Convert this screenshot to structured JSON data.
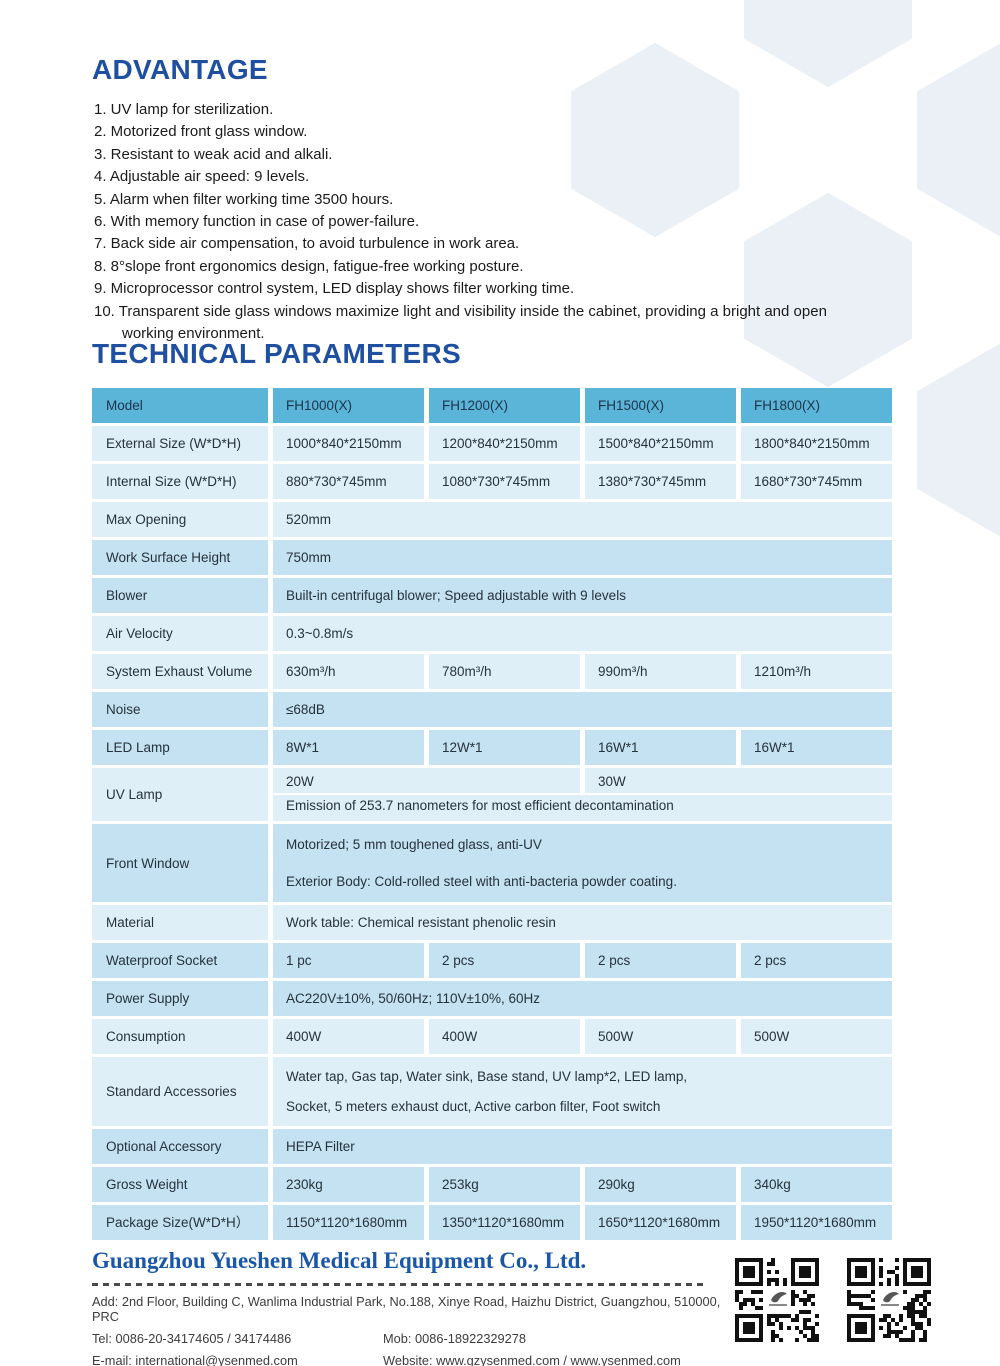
{
  "advantage": {
    "title": "ADVANTAGE",
    "items": [
      "1. UV lamp for sterilization.",
      "2. Motorized front glass window.",
      "3. Resistant to weak acid and alkali.",
      "4. Adjustable air speed: 9 levels.",
      "5. Alarm when filter working time 3500 hours.",
      "6. With memory function in case of power-failure.",
      "7. Back side air compensation, to avoid turbulence in work area.",
      "8. 8°slope front ergonomics design, fatigue-free working posture.",
      "9. Microprocessor control system, LED display shows filter working time.",
      "10. Transparent side glass windows maximize light and visibility inside the cabinet, providing a bright and open working environment."
    ]
  },
  "technical": {
    "title": "TECHNICAL PARAMETERS"
  },
  "table": {
    "rows": [
      {
        "label": "Model",
        "shade": "header",
        "cells": [
          {
            "text": "FH1000(X)"
          },
          {
            "text": "FH1200(X)"
          },
          {
            "text": "FH1500(X)"
          },
          {
            "text": "FH1800(X)"
          }
        ]
      },
      {
        "label": "External Size (W*D*H)",
        "shade": "light",
        "cells": [
          {
            "text": "1000*840*2150mm"
          },
          {
            "text": "1200*840*2150mm"
          },
          {
            "text": "1500*840*2150mm"
          },
          {
            "text": "1800*840*2150mm"
          }
        ]
      },
      {
        "label": "Internal Size (W*D*H)",
        "shade": "light",
        "cells": [
          {
            "text": "880*730*745mm"
          },
          {
            "text": "1080*730*745mm"
          },
          {
            "text": "1380*730*745mm"
          },
          {
            "text": "1680*730*745mm"
          }
        ]
      },
      {
        "label": "Max Opening",
        "shade": "light",
        "cells": [
          {
            "text": "520mm",
            "span": 4
          }
        ]
      },
      {
        "label": "Work Surface Height",
        "shade": "dark",
        "cells": [
          {
            "text": "750mm",
            "span": 4
          }
        ]
      },
      {
        "label": "Blower",
        "shade": "dark",
        "cells": [
          {
            "text": "Built-in centrifugal blower; Speed adjustable with 9 levels",
            "span": 4
          }
        ]
      },
      {
        "label": "Air Velocity",
        "shade": "light",
        "cells": [
          {
            "text": "0.3~0.8m/s",
            "span": 4
          }
        ]
      },
      {
        "label": "System Exhaust Volume",
        "shade": "light",
        "cells": [
          {
            "text": "630m³/h"
          },
          {
            "text": "780m³/h"
          },
          {
            "text": "990m³/h"
          },
          {
            "text": "1210m³/h"
          }
        ]
      },
      {
        "label": "Noise",
        "shade": "dark",
        "cells": [
          {
            "text": "≤68dB",
            "span": 4
          }
        ]
      },
      {
        "label": "LED Lamp",
        "shade": "dark",
        "cells": [
          {
            "text": "8W*1"
          },
          {
            "text": "12W*1"
          },
          {
            "text": "16W*1"
          },
          {
            "text": "16W*1"
          }
        ]
      },
      {
        "label": "UV Lamp",
        "shade": "light",
        "uv": {
          "top": [
            {
              "text": "20W"
            },
            {
              "text": "30W"
            }
          ],
          "bottom": "Emission of 253.7 nanometers for most efficient decontamination"
        }
      },
      {
        "label": "Front Window",
        "shade": "dark",
        "lines": [
          "Motorized; 5 mm toughened glass, anti-UV",
          "Exterior Body: Cold-rolled steel with anti-bacteria powder coating."
        ]
      },
      {
        "label": "Material",
        "shade": "light",
        "cells": [
          {
            "text": "Work table: Chemical resistant phenolic resin",
            "span": 4
          }
        ]
      },
      {
        "label": "Waterproof Socket",
        "shade": "dark",
        "cells": [
          {
            "text": "1 pc"
          },
          {
            "text": "2 pcs"
          },
          {
            "text": "2 pcs"
          },
          {
            "text": "2 pcs"
          }
        ]
      },
      {
        "label": "Power Supply",
        "shade": "dark",
        "cells": [
          {
            "text": "AC220V±10%, 50/60Hz; 110V±10%, 60Hz",
            "span": 4
          }
        ]
      },
      {
        "label": "Consumption",
        "shade": "light",
        "cells": [
          {
            "text": "400W"
          },
          {
            "text": "400W"
          },
          {
            "text": "500W"
          },
          {
            "text": "500W"
          }
        ]
      },
      {
        "label": "Standard Accessories",
        "shade": "light",
        "tight": true,
        "lines": [
          "Water tap, Gas tap, Water sink, Base stand, UV lamp*2, LED lamp,",
          "Socket, 5 meters exhaust duct, Active carbon filter, Foot switch"
        ]
      },
      {
        "label": "Optional Accessory",
        "shade": "dark",
        "cells": [
          {
            "text": "HEPA Filter",
            "span": 4
          }
        ]
      },
      {
        "label": "Gross Weight",
        "shade": "dark",
        "cells": [
          {
            "text": "230kg"
          },
          {
            "text": "253kg"
          },
          {
            "text": "290kg"
          },
          {
            "text": "340kg"
          }
        ]
      },
      {
        "label": "Package Size(W*D*H）",
        "shade": "dark",
        "cells": [
          {
            "text": "1150*1120*1680mm"
          },
          {
            "text": "1350*1120*1680mm"
          },
          {
            "text": "1650*1120*1680mm"
          },
          {
            "text": "1950*1120*1680mm"
          }
        ]
      }
    ]
  },
  "footer": {
    "company": "Guangzhou Yueshen Medical Equipment Co., Ltd.",
    "address": "Add: 2nd Floor, Building C, Wanlima Industrial Park, No.188, Xinye Road, Haizhu District, Guangzhou, 510000, PRC",
    "tel": "Tel: 0086-20-34174605 / 34174486",
    "mob": "Mob: 0086-18922329278",
    "email": "E-mail: international@ysenmed.com",
    "website": "Website: www.gzysenmed.com / www.ysenmed.com"
  },
  "colors": {
    "heading_blue": "#1E4FA0",
    "company_blue": "#1A57A8",
    "table_header": "#5AB5D9",
    "row_light": "#DFEFF8",
    "row_dark": "#C4E2F1",
    "hexagon_fill": "#EAF0F6"
  }
}
